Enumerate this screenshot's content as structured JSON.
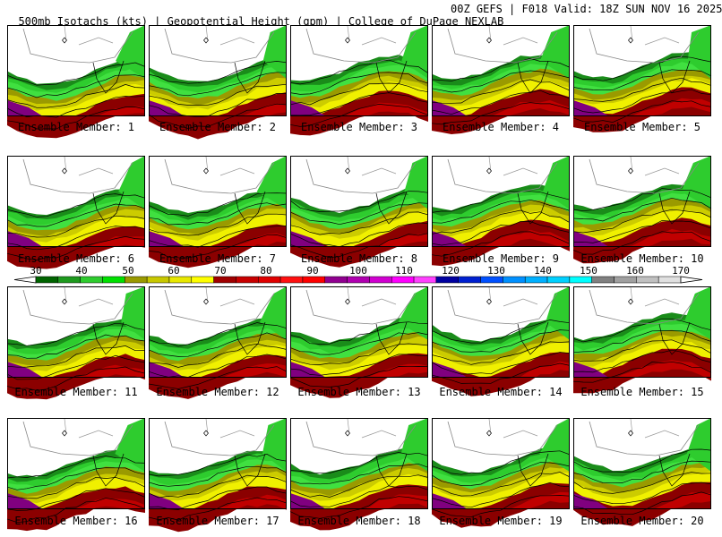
{
  "header": {
    "left": "500mb Isotachs (kts) | Geopotential Height (gpm) | College of DuPage NEXLAB",
    "right": "00Z GEFS | F018 Valid: 18Z SUN NOV 16 2025"
  },
  "members": [
    "Ensemble Member: 1",
    "Ensemble Member: 2",
    "Ensemble Member: 3",
    "Ensemble Member: 4",
    "Ensemble Member: 5",
    "Ensemble Member: 6",
    "Ensemble Member: 7",
    "Ensemble Member: 8",
    "Ensemble Member: 9",
    "Ensemble Member: 10",
    "Ensemble Member: 11",
    "Ensemble Member: 12",
    "Ensemble Member: 13",
    "Ensemble Member: 14",
    "Ensemble Member: 15",
    "Ensemble Member: 16",
    "Ensemble Member: 17",
    "Ensemble Member: 18",
    "Ensemble Member: 19",
    "Ensemble Member: 20"
  ],
  "colorbar": {
    "units": "kts",
    "ticks": [
      "30",
      "40",
      "50",
      "60",
      "70",
      "80",
      "90",
      "100",
      "110",
      "120",
      "130",
      "140",
      "150",
      "160",
      "170"
    ],
    "colors": [
      "#006400",
      "#1e9a1e",
      "#2ecc2e",
      "#00e000",
      "#9a9a00",
      "#c8c800",
      "#e8e800",
      "#ffff00",
      "#a00000",
      "#c80000",
      "#e00000",
      "#ff1010",
      "#ff0000",
      "#900090",
      "#b000b0",
      "#d000d0",
      "#ff00ff",
      "#ff40ff",
      "#0000a0",
      "#0020d0",
      "#0050ff",
      "#0090ff",
      "#00b0ff",
      "#00d0ff",
      "#00ffff",
      "#808080",
      "#a0a0a0",
      "#c0c0c0",
      "#e0e0e0"
    ]
  },
  "map_colors": {
    "green_dark": "#1a8c1a",
    "green": "#2ecc2e",
    "green_light": "#40e040",
    "olive": "#9a9a00",
    "yellow_dark": "#cccc00",
    "yellow": "#f0f000",
    "red_dark": "#8b0000",
    "red": "#c00000",
    "purple": "#800080"
  }
}
